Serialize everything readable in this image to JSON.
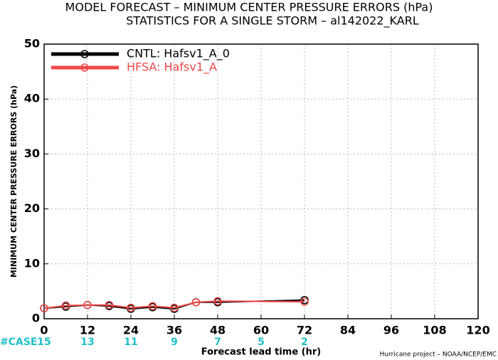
{
  "chart_data": {
    "type": "line",
    "title": "MODEL FORECAST – MINIMUM CENTER PRESSURE ERRORS (hPa)",
    "subtitle": "STATISTICS FOR A SINGLE STORM – al142022_KARL",
    "x_label": "Forecast lead time (hr)",
    "y_label": "MINIMUM CENTER PRESSURE ERRORS (hPa)",
    "x": [
      0,
      6,
      12,
      18,
      24,
      30,
      36,
      42,
      48,
      72
    ],
    "series": [
      {
        "name": "CNTL: Hafsv1_A_0",
        "color": "#000000",
        "values": [
          1.9,
          2.2,
          2.5,
          2.3,
          1.8,
          2.1,
          1.8,
          3.0,
          3.0,
          3.4
        ]
      },
      {
        "name": "HFSA: Hafsv1_A",
        "color": "#f04848",
        "values": [
          1.9,
          2.4,
          2.5,
          2.5,
          2.0,
          2.3,
          2.0,
          3.0,
          3.2,
          3.1
        ]
      }
    ],
    "xlim": [
      0,
      120
    ],
    "xticks": [
      0,
      12,
      24,
      36,
      48,
      60,
      72,
      84,
      96,
      108,
      120
    ],
    "ylim": [
      0,
      50
    ],
    "yticks": [
      0,
      10,
      20,
      30,
      40,
      50
    ],
    "grid": true,
    "legend": "top-left",
    "case_label": "#CASE",
    "case_counts": [
      15,
      13,
      11,
      9,
      7,
      5,
      2
    ],
    "case_color": "#20c0c8",
    "footer": "Hurricane project – NOAA/NCEP/EMC"
  }
}
